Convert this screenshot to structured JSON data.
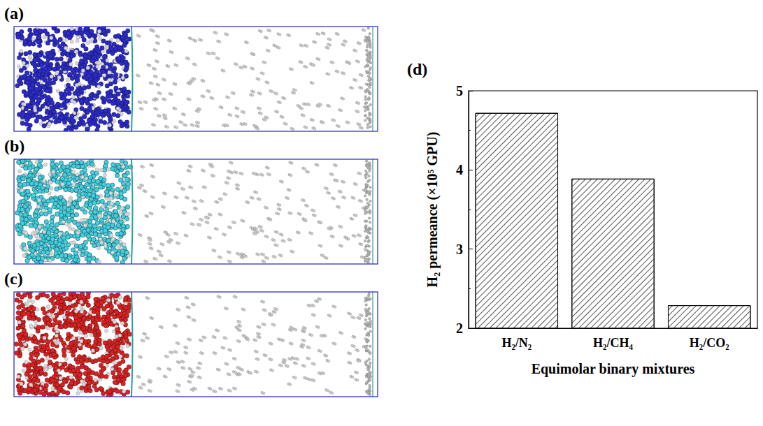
{
  "snapshots": [
    {
      "label": "(a)",
      "color": "#2a2ad0"
    },
    {
      "label": "(b)",
      "color": "#40d0e0"
    },
    {
      "label": "(c)",
      "color": "#e02020"
    }
  ],
  "chart_data": {
    "type": "bar",
    "panel_label": "(d)",
    "categories": [
      "H₂/N₂",
      "H₂/CH₄",
      "H₂/CO₂"
    ],
    "values": [
      4.72,
      3.89,
      2.29
    ],
    "color": "#ffffff",
    "x_label": "Equimolar binary mixtures",
    "y_label": "H₂ permeance (×10⁵ GPU)",
    "ylim": [
      2,
      5
    ],
    "yticks": [
      2,
      3,
      4,
      5
    ],
    "grid": false
  }
}
